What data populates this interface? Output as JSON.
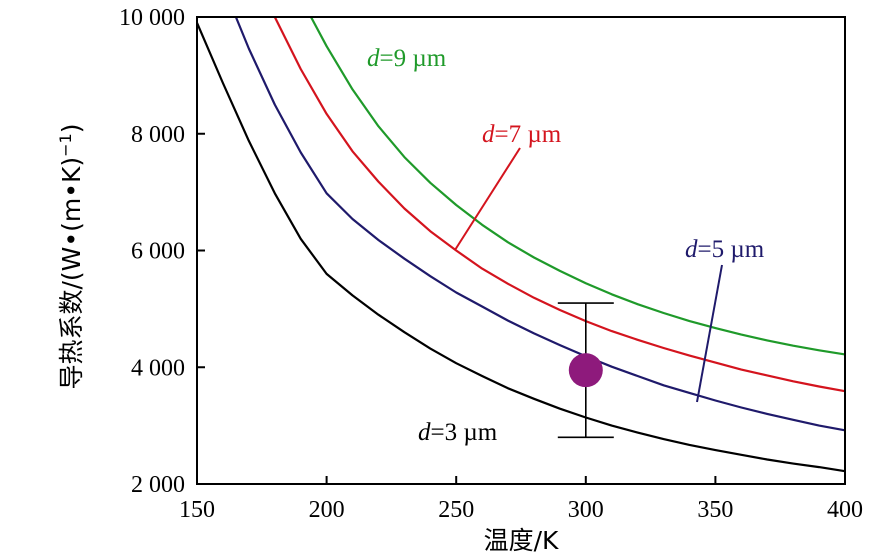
{
  "chart_data": {
    "type": "line",
    "title": "",
    "xlabel": "温度/K",
    "ylabel": "导热系数/(W•(m•K)",
    "ylabel_sup": "−1",
    "ylabel_close": ")",
    "xlim": [
      150,
      400
    ],
    "ylim": [
      2000,
      10000
    ],
    "x_ticks": [
      150,
      200,
      250,
      300,
      350,
      400
    ],
    "x_tick_labels": [
      "150",
      "200",
      "250",
      "300",
      "350",
      "400"
    ],
    "y_ticks": [
      2000,
      4000,
      6000,
      8000,
      10000
    ],
    "y_tick_labels": [
      "2 000",
      "4 000",
      "6 000",
      "8 000",
      "10 000"
    ],
    "grid": false,
    "series": [
      {
        "label_var": "d",
        "label_rest": "=3 µm",
        "color": "#000000",
        "x": [
          150,
          160,
          170,
          180,
          190,
          200,
          210,
          220,
          230,
          240,
          250,
          260,
          270,
          280,
          290,
          300,
          310,
          320,
          330,
          340,
          350,
          360,
          370,
          380,
          390,
          400
        ],
        "y": [
          9900,
          8870,
          7880,
          6980,
          6200,
          5600,
          5230,
          4900,
          4600,
          4320,
          4070,
          3850,
          3640,
          3460,
          3290,
          3140,
          3000,
          2880,
          2770,
          2670,
          2580,
          2500,
          2420,
          2350,
          2290,
          2220
        ]
      },
      {
        "label_var": "d",
        "label_rest": "=5 µm",
        "color": "#1f1a6b",
        "x": [
          165,
          170,
          180,
          190,
          200,
          210,
          220,
          230,
          240,
          250,
          260,
          270,
          280,
          290,
          300,
          310,
          320,
          330,
          340,
          350,
          360,
          370,
          380,
          390,
          400
        ],
        "y": [
          10000,
          9460,
          8500,
          7680,
          6980,
          6540,
          6180,
          5860,
          5560,
          5280,
          5040,
          4800,
          4580,
          4380,
          4190,
          4010,
          3850,
          3690,
          3560,
          3430,
          3310,
          3200,
          3100,
          3000,
          2920
        ]
      },
      {
        "label_var": "d",
        "label_rest": "=7 µm",
        "color": "#d4141e",
        "x": [
          180,
          190,
          200,
          210,
          220,
          230,
          240,
          250,
          260,
          270,
          280,
          290,
          300,
          310,
          320,
          330,
          340,
          350,
          360,
          370,
          380,
          390,
          400
        ],
        "y": [
          10000,
          9110,
          8340,
          7700,
          7180,
          6720,
          6330,
          6000,
          5690,
          5430,
          5190,
          4980,
          4790,
          4620,
          4470,
          4330,
          4200,
          4080,
          3960,
          3860,
          3760,
          3670,
          3590
        ]
      },
      {
        "label_var": "d",
        "label_rest": "=9 µm",
        "color": "#1f9a2a",
        "x": [
          194,
          200,
          210,
          220,
          230,
          240,
          250,
          260,
          270,
          280,
          290,
          300,
          310,
          320,
          330,
          340,
          350,
          360,
          370,
          380,
          390,
          400
        ],
        "y": [
          10000,
          9500,
          8760,
          8130,
          7600,
          7160,
          6780,
          6440,
          6140,
          5880,
          5650,
          5440,
          5250,
          5080,
          4930,
          4790,
          4670,
          4560,
          4460,
          4370,
          4290,
          4220
        ]
      }
    ],
    "measurement": {
      "x": 300,
      "y": 3950,
      "err_low": 2800,
      "err_high": 5100,
      "color": "#8e1a7c"
    }
  }
}
